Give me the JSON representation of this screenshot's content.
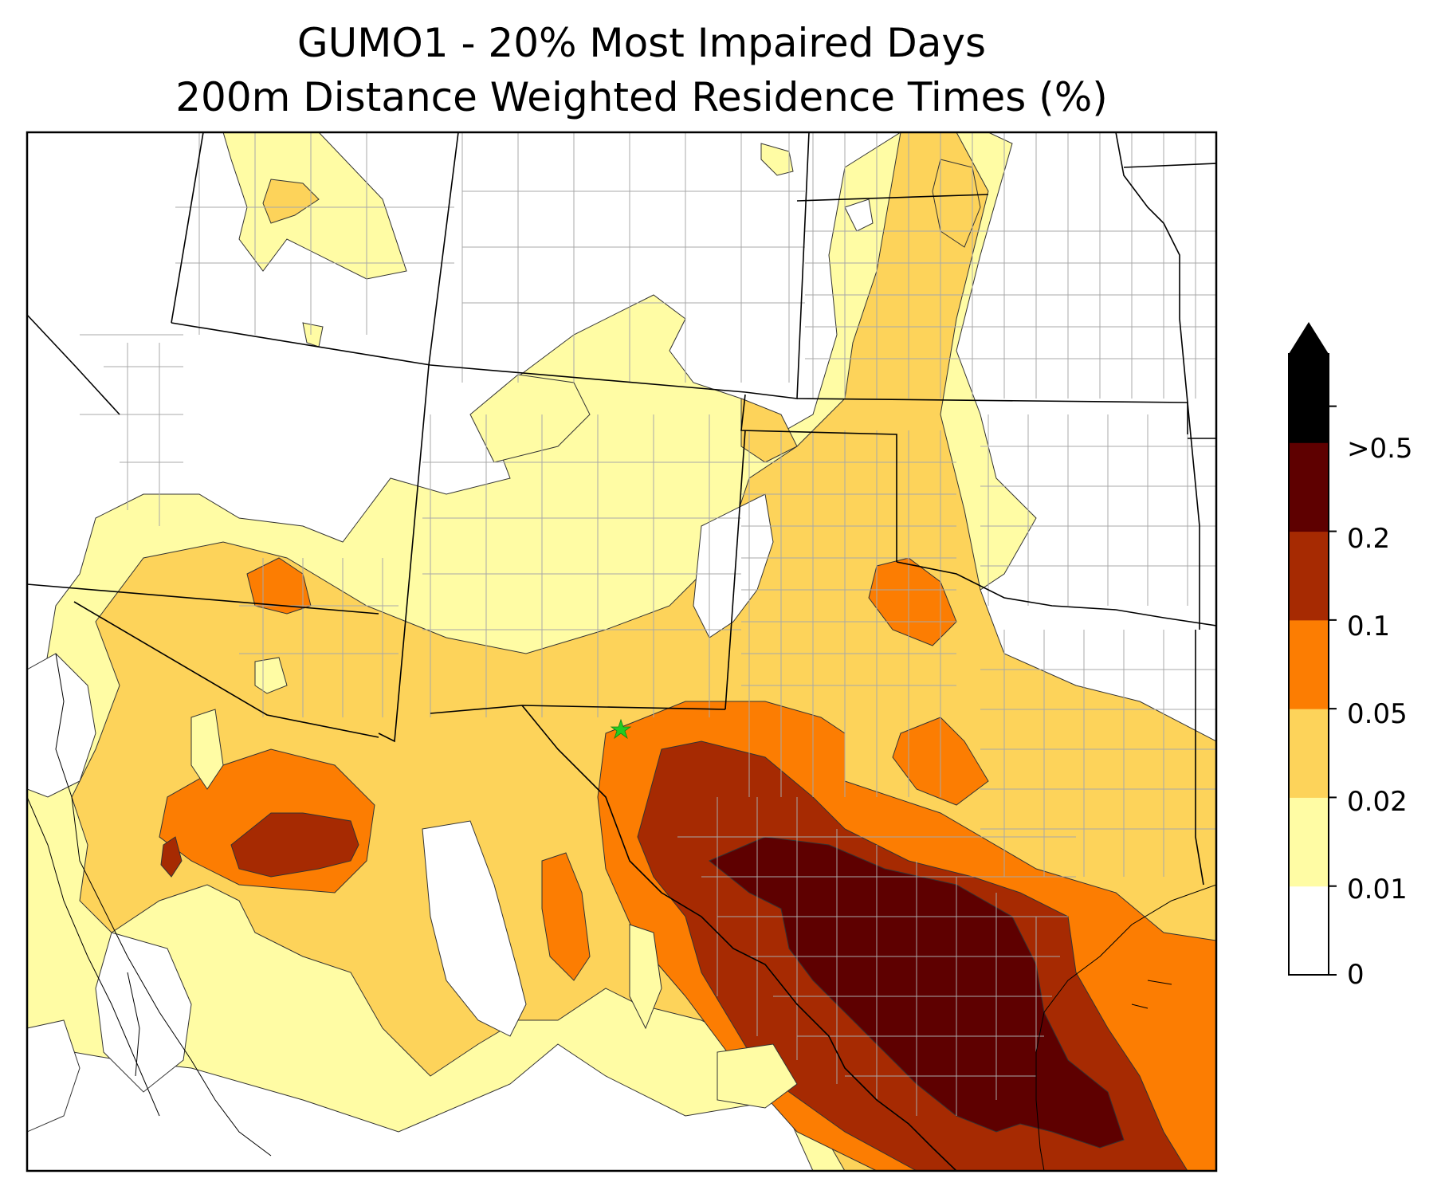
{
  "title": {
    "line1": "GUMO1 - 20% Most Impaired Days",
    "line2": "200m Distance Weighted Residence Times (%)"
  },
  "site_marker": {
    "name": "GUMO1",
    "color": "#22cc22"
  },
  "colorbar": {
    "extend": "max",
    "levels": [
      {
        "label": "0",
        "color": "#ffffff"
      },
      {
        "label": "0.01",
        "color": "#fffca4"
      },
      {
        "label": "0.02",
        "color": "#fdd35a"
      },
      {
        "label": "0.05",
        "color": "#fc7d02"
      },
      {
        "label": "0.1",
        "color": "#a62a02"
      },
      {
        "label": "0.2",
        "color": "#5e0000"
      },
      {
        "label": ">0.5",
        "color": "#000000"
      }
    ]
  },
  "palette": {
    "state_border": "#000000",
    "county_border": "#a8a8a8",
    "contour_line": "#333333"
  }
}
